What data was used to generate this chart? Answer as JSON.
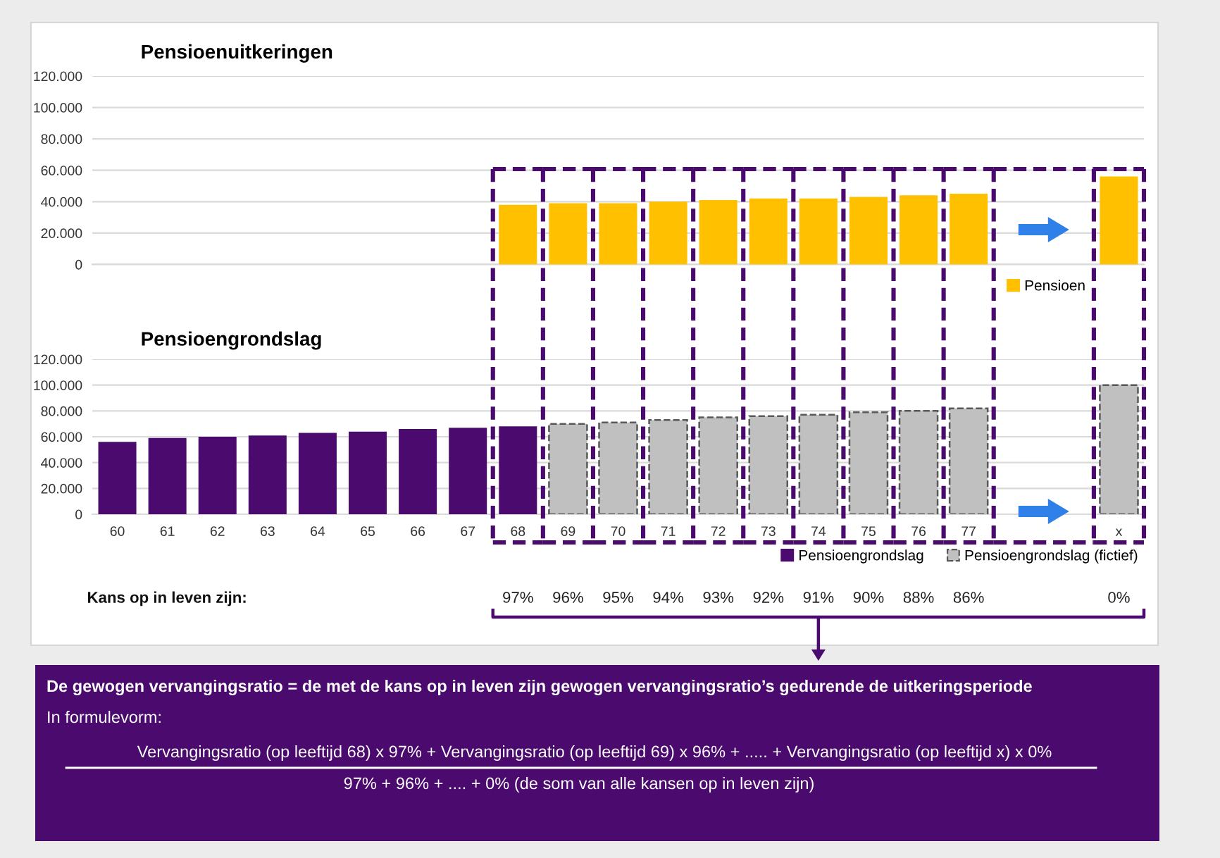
{
  "chart_data": [
    {
      "type": "bar",
      "title": "Pensioenuitkeringen",
      "categories": [
        null,
        null,
        null,
        null,
        null,
        null,
        null,
        null,
        null,
        null,
        null,
        null,
        null,
        null,
        null,
        null,
        null,
        null,
        null,
        null,
        null
      ],
      "series": [
        {
          "name": "Pensioen",
          "color": "#ffc000",
          "values": [
            null,
            null,
            null,
            null,
            null,
            null,
            null,
            null,
            38000,
            39000,
            39000,
            40000,
            41000,
            42000,
            42000,
            43000,
            44000,
            45000,
            null,
            null,
            56000
          ]
        }
      ],
      "ylim": [
        0,
        120000
      ],
      "yticks": [
        0,
        {
          "value": 20000,
          "label": "20.000"
        },
        {
          "value": 40000,
          "label": "40.000"
        },
        {
          "value": 60000,
          "label": "60.000"
        },
        {
          "value": 80000,
          "label": "80.000"
        },
        {
          "value": 100000,
          "label": "100.000"
        },
        {
          "value": 120000,
          "label": "120.000"
        }
      ],
      "grid": "y",
      "legend": "bottom right",
      "tick_labels": "y"
    },
    {
      "type": "bar",
      "title": "Pensioengrondslag",
      "categories": [
        "60",
        "61",
        "62",
        "63",
        "64",
        "65",
        "66",
        "67",
        "68",
        "69",
        "70",
        "71",
        "72",
        "73",
        "74",
        "75",
        "76",
        "77",
        null,
        null,
        "x"
      ],
      "stacked": true,
      "series": [
        {
          "name": "Pensioengrondslag",
          "color": "#4b0a6e",
          "values": [
            56000,
            59000,
            60000,
            61000,
            63000,
            64000,
            66000,
            67000,
            68000,
            null,
            null,
            null,
            null,
            null,
            null,
            null,
            null,
            null,
            null,
            null,
            null
          ]
        },
        {
          "name": "Pensioengrondslag (fictief)",
          "color": "#c0c0c0",
          "line_style": "dashed",
          "values": [
            null,
            null,
            null,
            null,
            null,
            null,
            null,
            null,
            null,
            70000,
            71000,
            73000,
            75000,
            76000,
            77000,
            79000,
            80000,
            82000,
            null,
            null,
            100000
          ]
        }
      ],
      "ylim": [
        0,
        120000
      ],
      "yticks": [
        0,
        {
          "value": 20000,
          "label": "20.000"
        },
        {
          "value": 40000,
          "label": "40.000"
        },
        {
          "value": 60000,
          "label": "60.000"
        },
        {
          "value": 80000,
          "label": "80.000"
        },
        {
          "value": 100000,
          "label": "100.000"
        },
        {
          "value": 120000,
          "label": "120.000"
        }
      ],
      "grid": "y",
      "legend": "bottom right",
      "annotations": [
        "Kans op in leven zijn:",
        "97%",
        "96%",
        "95%",
        "94%",
        "93%",
        "92%",
        "91%",
        "90%",
        "88%",
        "86%",
        "0%",
        "De gewogen vervangingsratio = de met de kans op in leven zijn gewogen vervangingsratio’s gedurende de uitkeringsperiode",
        "In formulevorm:",
        "Vervangingsratio (op leeftijd 68) x 97% + Vervangingsratio (op leeftijd 69) x 96% + ..... + Vervangingsratio (op leeftijd x) x 0%",
        "97% + 96% + .... + 0% (de som van alle kansen op in leven zijn)"
      ]
    }
  ]
}
